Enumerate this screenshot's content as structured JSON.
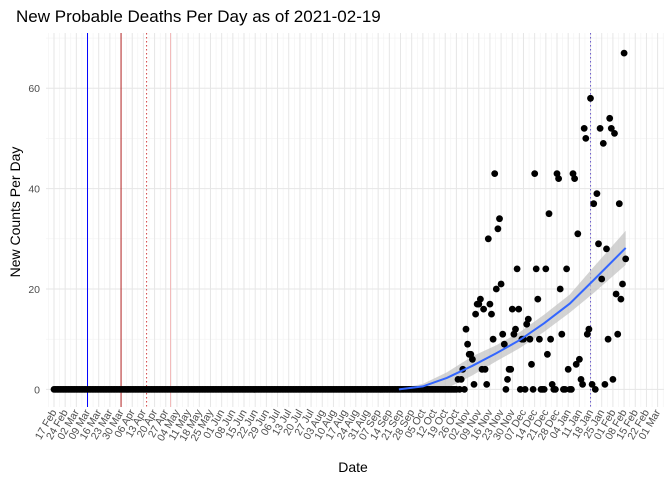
{
  "chart_data": {
    "type": "scatter",
    "title": "New Probable Deaths Per Day as of 2021-02-19",
    "xlabel": "Date",
    "ylabel": "New Counts Per Day",
    "x_range": [
      "2020-02-12",
      "2021-03-05"
    ],
    "ylim": [
      -3.5,
      71
    ],
    "y_ticks": [
      0,
      20,
      40,
      60
    ],
    "x_tick_start": "2020-02-17",
    "x_tick_end": "2021-03-01",
    "x_tick_interval_days": 7,
    "x_tick_labels": [
      "17 Feb",
      "24 Feb",
      "02 Mar",
      "09 Mar",
      "16 Mar",
      "23 Mar",
      "30 Mar",
      "06 Apr",
      "13 Apr",
      "20 Apr",
      "27 Apr",
      "04 May",
      "11 May",
      "18 May",
      "25 May",
      "01 Jun",
      "08 Jun",
      "15 Jun",
      "22 Jun",
      "29 Jun",
      "06 Jul",
      "13 Jul",
      "20 Jul",
      "27 Jul",
      "03 Aug",
      "10 Aug",
      "17 Aug",
      "24 Aug",
      "31 Aug",
      "07 Sep",
      "14 Sep",
      "21 Sep",
      "28 Sep",
      "05 Oct",
      "12 Oct",
      "19 Oct",
      "26 Oct",
      "02 Nov",
      "09 Nov",
      "16 Nov",
      "23 Nov",
      "30 Nov",
      "07 Dec",
      "14 Dec",
      "21 Dec",
      "28 Dec",
      "04 Jan",
      "11 Jan",
      "18 Jan",
      "25 Jan",
      "01 Feb",
      "08 Feb",
      "15 Feb",
      "22 Feb",
      "01 Mar"
    ],
    "grid": true,
    "legend": "none",
    "point_color": "#000000",
    "zero_start": "2020-02-17",
    "zero_end": "2020-10-10",
    "points": [
      [
        "2020-10-11",
        0
      ],
      [
        "2020-10-12",
        0
      ],
      [
        "2020-10-13",
        0
      ],
      [
        "2020-10-14",
        0
      ],
      [
        "2020-10-15",
        0
      ],
      [
        "2020-10-16",
        0
      ],
      [
        "2020-10-17",
        0
      ],
      [
        "2020-10-18",
        0
      ],
      [
        "2020-10-19",
        0
      ],
      [
        "2020-10-20",
        0
      ],
      [
        "2020-10-21",
        0
      ],
      [
        "2020-10-22",
        0
      ],
      [
        "2020-10-23",
        0
      ],
      [
        "2020-10-24",
        0
      ],
      [
        "2020-10-25",
        0
      ],
      [
        "2020-10-26",
        0
      ],
      [
        "2020-10-27",
        2
      ],
      [
        "2020-10-28",
        0
      ],
      [
        "2020-10-29",
        2
      ],
      [
        "2020-10-30",
        4
      ],
      [
        "2020-10-31",
        0
      ],
      [
        "2020-11-01",
        12
      ],
      [
        "2020-11-02",
        9
      ],
      [
        "2020-11-03",
        7
      ],
      [
        "2020-11-04",
        7
      ],
      [
        "2020-11-05",
        6
      ],
      [
        "2020-11-06",
        1
      ],
      [
        "2020-11-07",
        15
      ],
      [
        "2020-11-08",
        17
      ],
      [
        "2020-11-09",
        17
      ],
      [
        "2020-11-10",
        18
      ],
      [
        "2020-11-11",
        4
      ],
      [
        "2020-11-12",
        16
      ],
      [
        "2020-11-13",
        4
      ],
      [
        "2020-11-14",
        1
      ],
      [
        "2020-11-15",
        30
      ],
      [
        "2020-11-16",
        17
      ],
      [
        "2020-11-17",
        15
      ],
      [
        "2020-11-18",
        10
      ],
      [
        "2020-11-19",
        43
      ],
      [
        "2020-11-20",
        20
      ],
      [
        "2020-11-21",
        32
      ],
      [
        "2020-11-22",
        34
      ],
      [
        "2020-11-23",
        21
      ],
      [
        "2020-11-24",
        11
      ],
      [
        "2020-11-25",
        9
      ],
      [
        "2020-11-26",
        0
      ],
      [
        "2020-11-27",
        2
      ],
      [
        "2020-11-28",
        4
      ],
      [
        "2020-11-29",
        4
      ],
      [
        "2020-11-30",
        16
      ],
      [
        "2020-12-01",
        11
      ],
      [
        "2020-12-02",
        12
      ],
      [
        "2020-12-03",
        24
      ],
      [
        "2020-12-04",
        16
      ],
      [
        "2020-12-05",
        0
      ],
      [
        "2020-12-06",
        10
      ],
      [
        "2020-12-07",
        10
      ],
      [
        "2020-12-08",
        0
      ],
      [
        "2020-12-09",
        13
      ],
      [
        "2020-12-10",
        14
      ],
      [
        "2020-12-11",
        10
      ],
      [
        "2020-12-12",
        5
      ],
      [
        "2020-12-13",
        0
      ],
      [
        "2020-12-14",
        43
      ],
      [
        "2020-12-15",
        24
      ],
      [
        "2020-12-16",
        18
      ],
      [
        "2020-12-17",
        10
      ],
      [
        "2020-12-18",
        0
      ],
      [
        "2020-12-19",
        0
      ],
      [
        "2020-12-20",
        0
      ],
      [
        "2020-12-21",
        24
      ],
      [
        "2020-12-22",
        7
      ],
      [
        "2020-12-23",
        35
      ],
      [
        "2020-12-24",
        10
      ],
      [
        "2020-12-25",
        1
      ],
      [
        "2020-12-26",
        0
      ],
      [
        "2020-12-27",
        0
      ],
      [
        "2020-12-28",
        43
      ],
      [
        "2020-12-29",
        42
      ],
      [
        "2020-12-30",
        20
      ],
      [
        "2020-12-31",
        11
      ],
      [
        "2021-01-01",
        0
      ],
      [
        "2021-01-02",
        0
      ],
      [
        "2021-01-03",
        24
      ],
      [
        "2021-01-04",
        4
      ],
      [
        "2021-01-05",
        0
      ],
      [
        "2021-01-06",
        0
      ],
      [
        "2021-01-07",
        43
      ],
      [
        "2021-01-08",
        42
      ],
      [
        "2021-01-09",
        5
      ],
      [
        "2021-01-10",
        31
      ],
      [
        "2021-01-11",
        6
      ],
      [
        "2021-01-12",
        2
      ],
      [
        "2021-01-13",
        1
      ],
      [
        "2021-01-14",
        52
      ],
      [
        "2021-01-15",
        50
      ],
      [
        "2021-01-16",
        11
      ],
      [
        "2021-01-17",
        12
      ],
      [
        "2021-01-18",
        58
      ],
      [
        "2021-01-19",
        1
      ],
      [
        "2021-01-20",
        37
      ],
      [
        "2021-01-21",
        0
      ],
      [
        "2021-01-22",
        39
      ],
      [
        "2021-01-23",
        29
      ],
      [
        "2021-01-24",
        52
      ],
      [
        "2021-01-25",
        22
      ],
      [
        "2021-01-26",
        49
      ],
      [
        "2021-01-27",
        1
      ],
      [
        "2021-01-28",
        28
      ],
      [
        "2021-01-29",
        10
      ],
      [
        "2021-01-30",
        54
      ],
      [
        "2021-01-31",
        52
      ],
      [
        "2021-02-01",
        2
      ],
      [
        "2021-02-02",
        51
      ],
      [
        "2021-02-03",
        19
      ],
      [
        "2021-02-04",
        11
      ],
      [
        "2021-02-05",
        37
      ],
      [
        "2021-02-06",
        18
      ],
      [
        "2021-02-07",
        21
      ],
      [
        "2021-02-08",
        67
      ],
      [
        "2021-02-09",
        26
      ]
    ],
    "smooth": {
      "color": "#3366ff",
      "band_color": "#c0c0c0",
      "x": [
        "2020-09-20",
        "2020-10-05",
        "2020-10-20",
        "2020-11-05",
        "2020-11-20",
        "2020-12-05",
        "2020-12-20",
        "2021-01-05",
        "2021-01-20",
        "2021-02-09"
      ],
      "y": [
        0,
        0.6,
        2.3,
        4.7,
        7.2,
        9.9,
        13.2,
        17.1,
        21.8,
        28.2
      ],
      "lower": [
        0,
        0,
        0.2,
        2.8,
        5.6,
        8.3,
        11.5,
        15.3,
        19.2,
        24.8
      ],
      "upper": [
        0.1,
        1.1,
        3.4,
        6.6,
        8.8,
        11.5,
        14.9,
        18.9,
        24.4,
        31.6
      ]
    },
    "vlines": [
      {
        "date": "2020-03-09",
        "color": "#0000ff",
        "dash": "solid"
      },
      {
        "date": "2020-03-30",
        "color": "#b22222",
        "dash": "solid"
      },
      {
        "date": "2020-04-15",
        "color": "#d13f3f",
        "dash": "dotted"
      },
      {
        "date": "2020-04-30",
        "color": "#f2b7b7",
        "dash": "solid"
      },
      {
        "date": "2021-01-18",
        "color": "#6a5acd",
        "dash": "dotted"
      }
    ]
  }
}
